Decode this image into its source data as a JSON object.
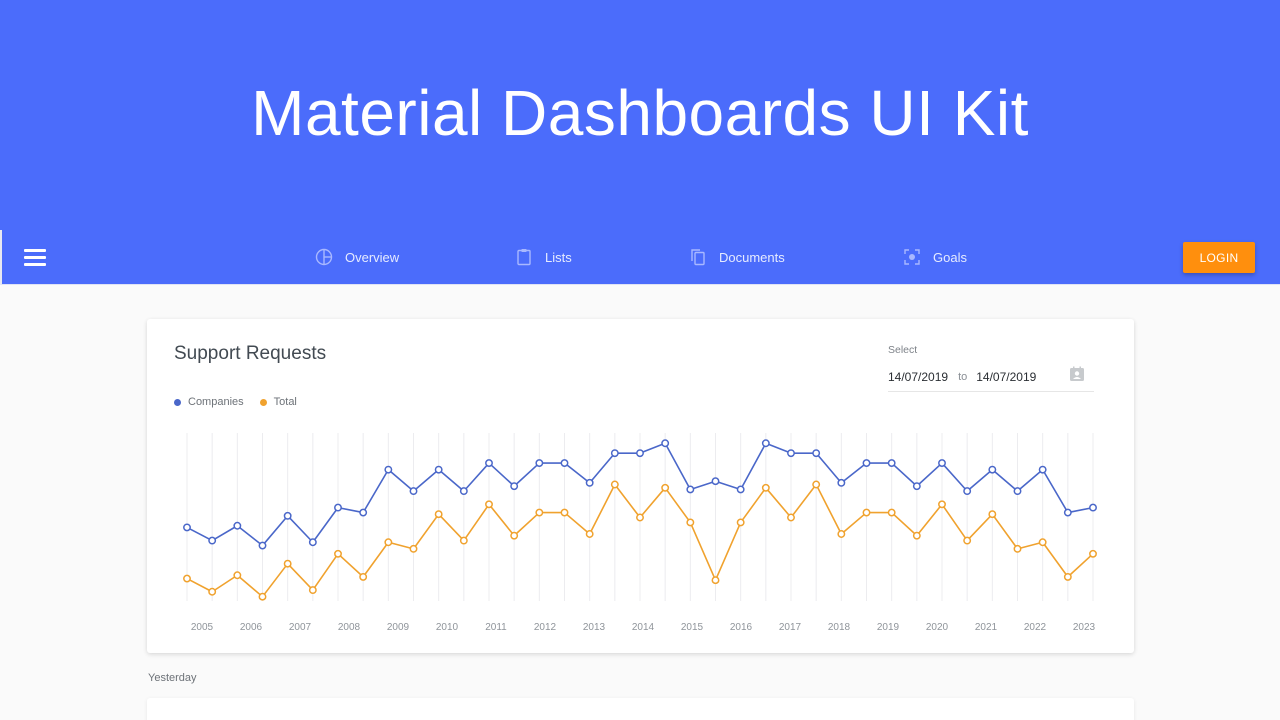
{
  "hero": {
    "title": "Material Dashboards UI Kit",
    "background": "#4b6cfb"
  },
  "navbar": {
    "menu_icon": "hamburger-menu-icon",
    "items": [
      {
        "label": "Overview",
        "icon": "pie-chart-icon"
      },
      {
        "label": "Lists",
        "icon": "clipboard-icon"
      },
      {
        "label": "Documents",
        "icon": "copy-documents-icon"
      },
      {
        "label": "Goals",
        "icon": "center-focus-icon"
      }
    ],
    "login_label": "LOGIN",
    "login_color": "#ff8f0d"
  },
  "card": {
    "title": "Support Requests",
    "legend": [
      {
        "label": "Companies",
        "color": "#4a67c9"
      },
      {
        "label": "Total",
        "color": "#f0a22e"
      }
    ],
    "date_select": {
      "label": "Select",
      "from": "14/07/2019",
      "to_label": "to",
      "to": "14/07/2019",
      "icon": "calendar-icon"
    }
  },
  "section_label": "Yesterday",
  "chart_data": {
    "type": "line",
    "title": "Support Requests",
    "xlabel": "",
    "ylabel": "",
    "x_tick_labels": [
      "2005",
      "2006",
      "2007",
      "2008",
      "2009",
      "2010",
      "2011",
      "2012",
      "2013",
      "2014",
      "2015",
      "2016",
      "2017",
      "2018",
      "2019",
      "2020",
      "2021",
      "2022",
      "2023"
    ],
    "point_count": 37,
    "grid": {
      "vertical": true,
      "horizontal": false
    },
    "legend_position": "top-left",
    "ylim": [
      0,
      100
    ],
    "series": [
      {
        "name": "Companies",
        "color": "#4a67c9",
        "values": [
          44,
          36,
          45,
          33,
          51,
          35,
          56,
          53,
          79,
          66,
          79,
          66,
          83,
          69,
          83,
          83,
          71,
          89,
          89,
          95,
          67,
          72,
          67,
          95,
          89,
          89,
          71,
          83,
          83,
          69,
          83,
          66,
          79,
          66,
          79,
          53,
          56
        ]
      },
      {
        "name": "Total",
        "color": "#f0a22e",
        "values": [
          13,
          5,
          15,
          2,
          22,
          6,
          28,
          14,
          35,
          31,
          52,
          36,
          58,
          39,
          53,
          53,
          40,
          70,
          50,
          68,
          47,
          12,
          47,
          68,
          50,
          70,
          40,
          53,
          53,
          39,
          58,
          36,
          52,
          31,
          35,
          14,
          28
        ]
      }
    ]
  }
}
